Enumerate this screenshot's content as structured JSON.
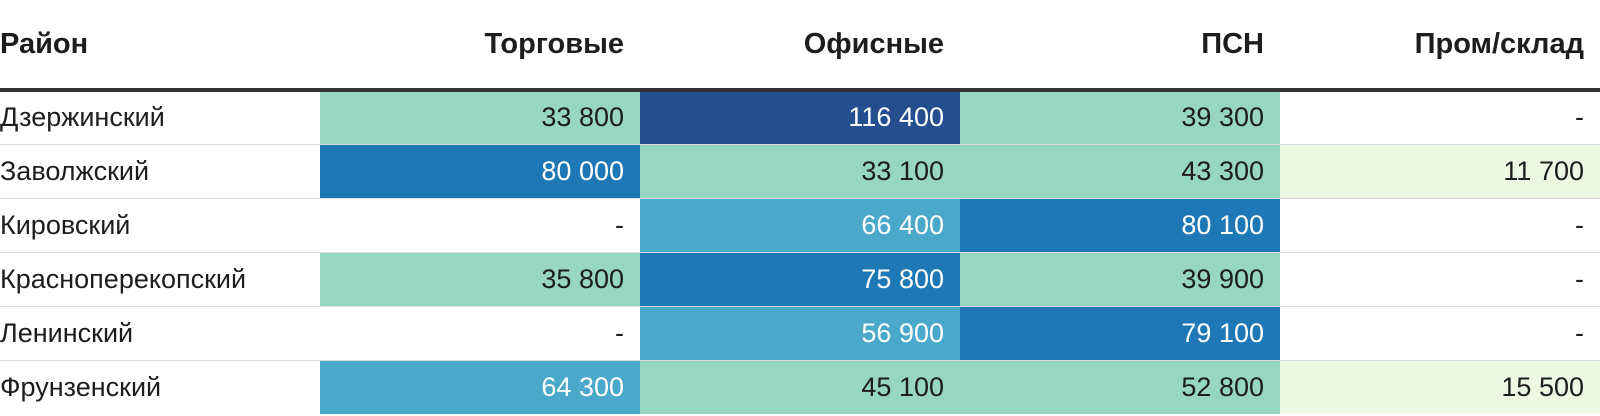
{
  "chart_data": {
    "type": "heatmap",
    "title": "",
    "columns": [
      "Район",
      "Торговые",
      "Офисные",
      "ПСН",
      "Пром/склад"
    ],
    "rows": [
      {
        "district": "Дзержинский",
        "values": [
          33800,
          116400,
          39300,
          null
        ]
      },
      {
        "district": "Заволжский",
        "values": [
          80000,
          33100,
          43300,
          11700
        ]
      },
      {
        "district": "Кировский",
        "values": [
          null,
          66400,
          80100,
          null
        ]
      },
      {
        "district": "Красноперекопский",
        "values": [
          35800,
          75800,
          39900,
          null
        ]
      },
      {
        "district": "Ленинский",
        "values": [
          null,
          56900,
          79100,
          null
        ]
      },
      {
        "district": "Фрунзенский",
        "values": [
          64300,
          45100,
          52800,
          15500
        ]
      }
    ],
    "missing_label": "-",
    "colors": {
      "scale": [
        {
          "min": 0,
          "max": 30000,
          "bg": "#edf8e3",
          "fg": "#1d1d1d"
        },
        {
          "min": 30000,
          "max": 55000,
          "bg": "#97d6c0",
          "fg": "#1d1d1d"
        },
        {
          "min": 55000,
          "max": 70000,
          "bg": "#4aa8cb",
          "fg": "#ffffff"
        },
        {
          "min": 70000,
          "max": 100000,
          "bg": "#1e78b6",
          "fg": "#ffffff"
        },
        {
          "min": 100000,
          "max": 1000000,
          "bg": "#254e8f",
          "fg": "#ffffff"
        }
      ],
      "missing_bg": "#ffffff",
      "missing_fg": "#1d1d1d"
    }
  }
}
